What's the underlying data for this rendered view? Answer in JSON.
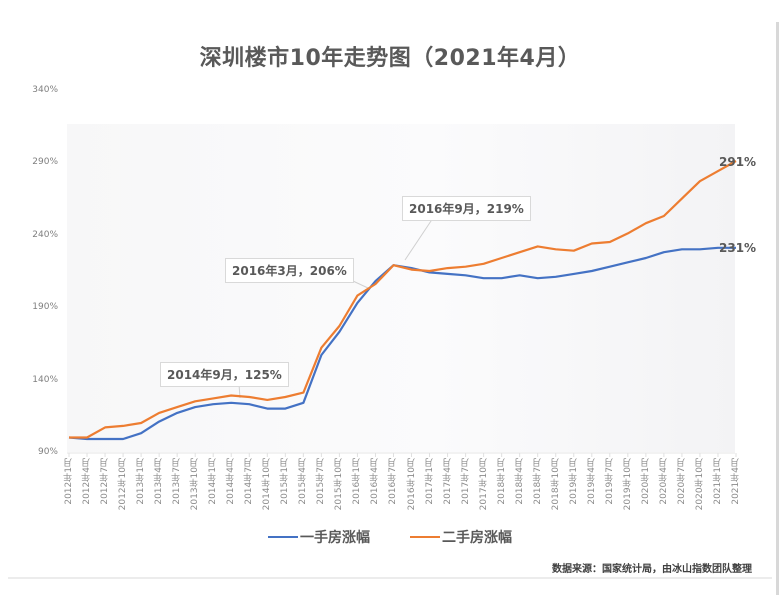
{
  "chart_data": {
    "type": "line",
    "title": "深圳楼市10年走势图（2021年4月）",
    "xlabel": "",
    "ylabel": "",
    "ylim": [
      90,
      340
    ],
    "yticks": [
      "340%",
      "290%",
      "240%",
      "190%",
      "140%",
      "90%"
    ],
    "ytick_values": [
      340,
      290,
      240,
      190,
      140,
      90
    ],
    "grid": false,
    "legend_position": "bottom",
    "x": [
      "2012年1月",
      "2012年4月",
      "2012年7月",
      "2012年10月",
      "2013年1月",
      "2013年4月",
      "2013年7月",
      "2013年10月",
      "2014年1月",
      "2014年4月",
      "2014年7月",
      "2014年10月",
      "2015年1月",
      "2015年4月",
      "2015年7月",
      "2015年10月",
      "2016年1月",
      "2016年4月",
      "2016年7月",
      "2016年10月",
      "2017年1月",
      "2017年4月",
      "2017年7月",
      "2017年10月",
      "2018年1月",
      "2018年4月",
      "2018年7月",
      "2018年10月",
      "2019年1月",
      "2019年4月",
      "2019年7月",
      "2019年10月",
      "2020年1月",
      "2020年4月",
      "2020年7月",
      "2020年10月",
      "2021年1月",
      "2021年4月"
    ],
    "series": [
      {
        "name": "一手房涨幅",
        "color": "#4472c4",
        "values": [
          100,
          99,
          99,
          99,
          103,
          111,
          117,
          121,
          123,
          124,
          123,
          120,
          120,
          124,
          157,
          173,
          193,
          208,
          219,
          217,
          214,
          213,
          212,
          210,
          210,
          212,
          210,
          211,
          213,
          215,
          218,
          221,
          224,
          228,
          230,
          230,
          231,
          231
        ]
      },
      {
        "name": "二手房涨幅",
        "color": "#ed7d31",
        "values": [
          100,
          100,
          107,
          108,
          110,
          117,
          121,
          125,
          127,
          129,
          128,
          126,
          128,
          131,
          162,
          177,
          198,
          206,
          219,
          216,
          215,
          217,
          218,
          220,
          224,
          228,
          232,
          230,
          229,
          234,
          235,
          241,
          248,
          253,
          265,
          277,
          284,
          291
        ]
      }
    ],
    "annotations": [
      {
        "label": "2014年9月, 125%",
        "x": "2014年9月",
        "value": 125
      },
      {
        "label": "2016年3月, 206%",
        "x": "2016年3月",
        "value": 206
      },
      {
        "label": "2016年9月, 219%",
        "x": "2016年9月",
        "value": 219
      },
      {
        "label": "291%",
        "x": "2021年4月",
        "series": "二手房涨幅",
        "value": 291
      },
      {
        "label": "231%",
        "x": "2021年4月",
        "series": "一手房涨幅",
        "value": 231
      }
    ],
    "source": "数据来源：国家统计局，由冰山指数团队整理"
  },
  "title": "深圳楼市10年走势图（2021年4月）",
  "callouts": {
    "c2014": "2014年9月，125%",
    "c2016mar": "2016年3月，206%",
    "c2016sep": "2016年9月，219%",
    "end_second": "291%",
    "end_first": "231%"
  },
  "legend": {
    "first_hand": "一手房涨幅",
    "second_hand": "二手房涨幅",
    "first_color": "#4472c4",
    "second_color": "#ed7d31"
  },
  "source": "数据来源：国家统计局，由冰山指数团队整理"
}
